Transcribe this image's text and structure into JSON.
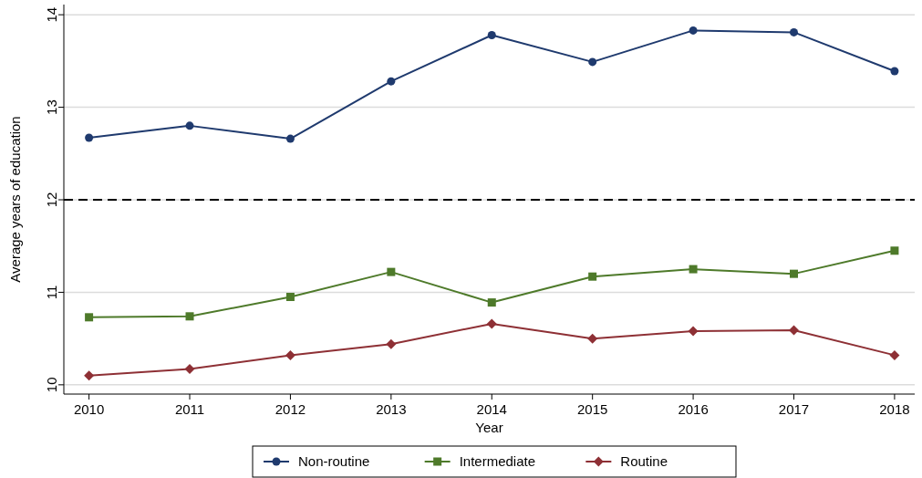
{
  "chart_data": {
    "type": "line",
    "xlabel": "Year",
    "ylabel": "Average years of education",
    "x": [
      2010,
      2011,
      2012,
      2013,
      2014,
      2015,
      2016,
      2017,
      2018
    ],
    "xlim": [
      2009.75,
      2018.2
    ],
    "xticks": [
      2010,
      2011,
      2012,
      2013,
      2014,
      2015,
      2016,
      2017,
      2018
    ],
    "ylim": [
      9.9,
      14.11
    ],
    "yticks": [
      10,
      11,
      12,
      13,
      14
    ],
    "grid": "y",
    "legend": "bottom",
    "ref_lines": [
      {
        "axis": "y",
        "value": 12,
        "color": "#000000",
        "line_style": "dashed"
      }
    ],
    "series": [
      {
        "name": "Non-routine",
        "color": "#1f3a6e",
        "marker": "circle",
        "values": [
          12.67,
          12.8,
          12.66,
          13.28,
          13.78,
          13.49,
          13.83,
          13.81,
          13.39
        ]
      },
      {
        "name": "Intermediate",
        "color": "#4e7a2a",
        "marker": "square",
        "values": [
          10.73,
          10.74,
          10.95,
          11.22,
          10.89,
          11.17,
          11.25,
          11.2,
          11.45
        ]
      },
      {
        "name": "Routine",
        "color": "#8e3035",
        "marker": "diamond",
        "values": [
          10.1,
          10.17,
          10.32,
          10.44,
          10.66,
          10.5,
          10.58,
          10.59,
          10.32
        ]
      }
    ]
  }
}
